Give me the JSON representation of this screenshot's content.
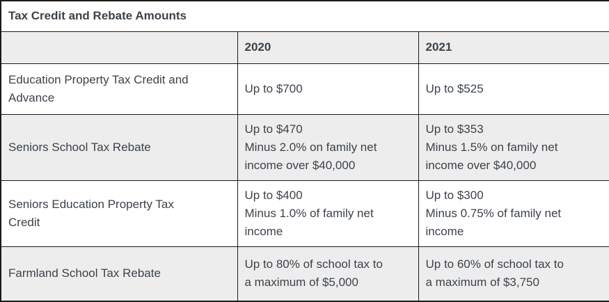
{
  "table": {
    "title": "Tax Credit and Rebate Amounts",
    "column_headers": [
      "2020",
      "2021"
    ],
    "rows": [
      {
        "label": "Education Property Tax Credit and\nAdvance",
        "y2020": "Up to $700",
        "y2021": "Up to $525"
      },
      {
        "label": "Seniors School Tax Rebate",
        "y2020": "Up to $470\nMinus 2.0% on family net\nincome over $40,000",
        "y2021": "Up to $353\nMinus 1.5% on family net\nincome over $40,000"
      },
      {
        "label": "Seniors Education Property Tax\nCredit",
        "y2020": "Up to $400\nMinus 1.0% of family net\nincome",
        "y2021": "Up to $300\nMinus 0.75% of family net\nincome"
      },
      {
        "label": "Farmland School Tax Rebate",
        "y2020": "Up to 80% of school tax to\na maximum of $5,000",
        "y2021": "Up to 60% of school tax to\na maximum of $3,750"
      }
    ]
  },
  "colors": {
    "border": "#1a1a1a",
    "header_background": "#ededed",
    "zebra_background": "#ededed",
    "text": "#3b434b"
  }
}
